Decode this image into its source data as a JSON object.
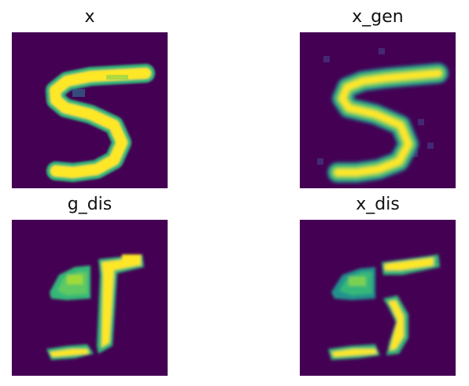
{
  "panels": {
    "x": {
      "title": "x"
    },
    "x_gen": {
      "title": "x_gen"
    },
    "g_dis": {
      "title": "g_dis"
    },
    "x_dis": {
      "title": "x_dis"
    }
  },
  "colormap": {
    "background": "#440154",
    "low": "#31688e",
    "mid": "#35b779",
    "high": "#fde725"
  }
}
